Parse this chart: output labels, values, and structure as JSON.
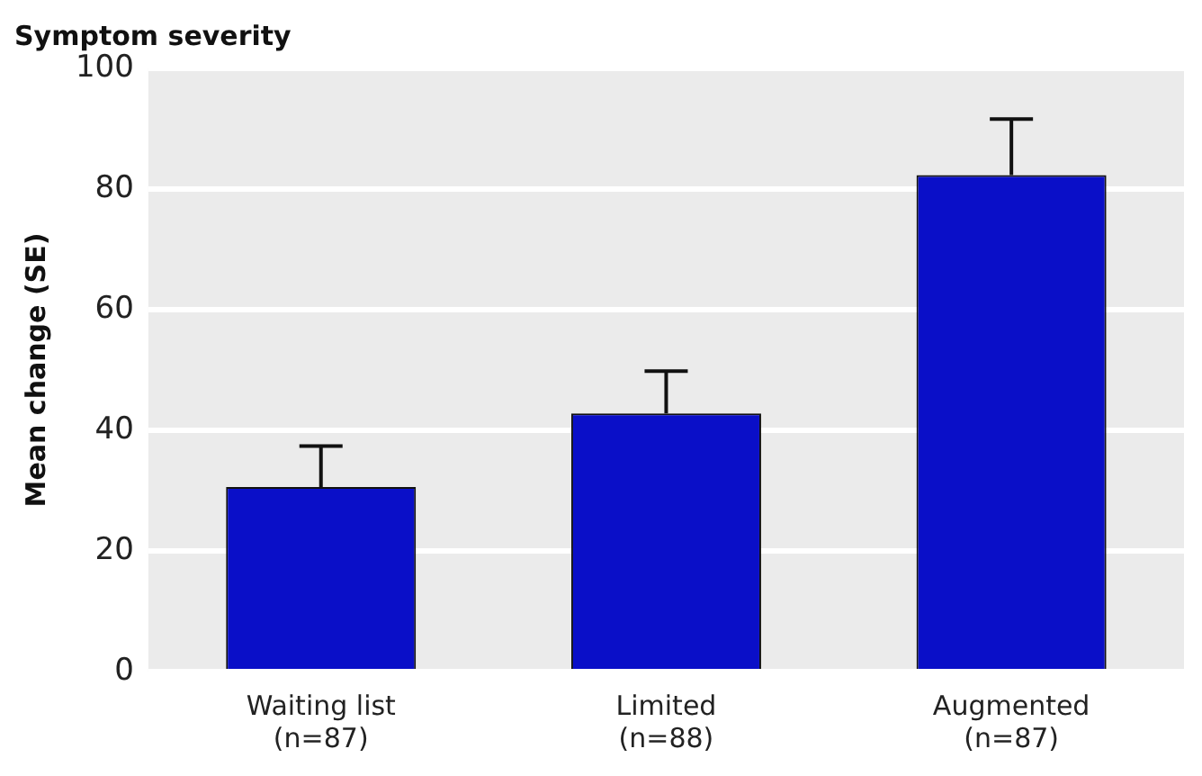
{
  "chart_data": {
    "type": "bar",
    "title": "Symptom severity",
    "ylabel": "Mean change (SE)",
    "categories": [
      "Waiting list\n(n=87)",
      "Limited\n(n=88)",
      "Augmented\n(n=87)"
    ],
    "values": [
      30.6,
      42.8,
      82.3
    ],
    "color": "#0a0fc8",
    "errors": [
      [
        30.6,
        37.4
      ],
      [
        42.8,
        49.8
      ],
      [
        82.3,
        91.6
      ]
    ],
    "ylim": [
      0,
      100
    ],
    "yticks": [
      0,
      20,
      40,
      60,
      80,
      100
    ],
    "grid": "y",
    "legend": false
  }
}
